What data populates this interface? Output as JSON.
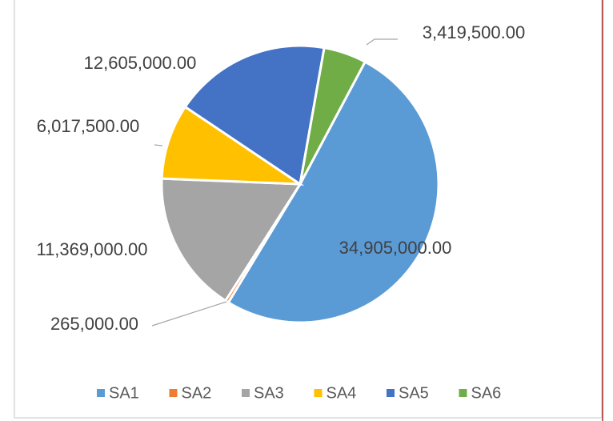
{
  "chart_data": {
    "type": "pie",
    "categories": [
      "SA1",
      "SA2",
      "SA3",
      "SA4",
      "SA5",
      "SA6"
    ],
    "values": [
      34905000,
      265000,
      11369000,
      6017500,
      12605000,
      3419500
    ],
    "value_labels": [
      "34,905,000.00",
      "265,000.00",
      "11,369,000.00",
      "6,017,500.00",
      "12,605,000.00",
      "3,419,500.00"
    ],
    "colors": [
      "#5b9bd5",
      "#ed7d31",
      "#a5a5a5",
      "#ffc000",
      "#4472c4",
      "#70ad47"
    ],
    "legend": "bottom"
  }
}
